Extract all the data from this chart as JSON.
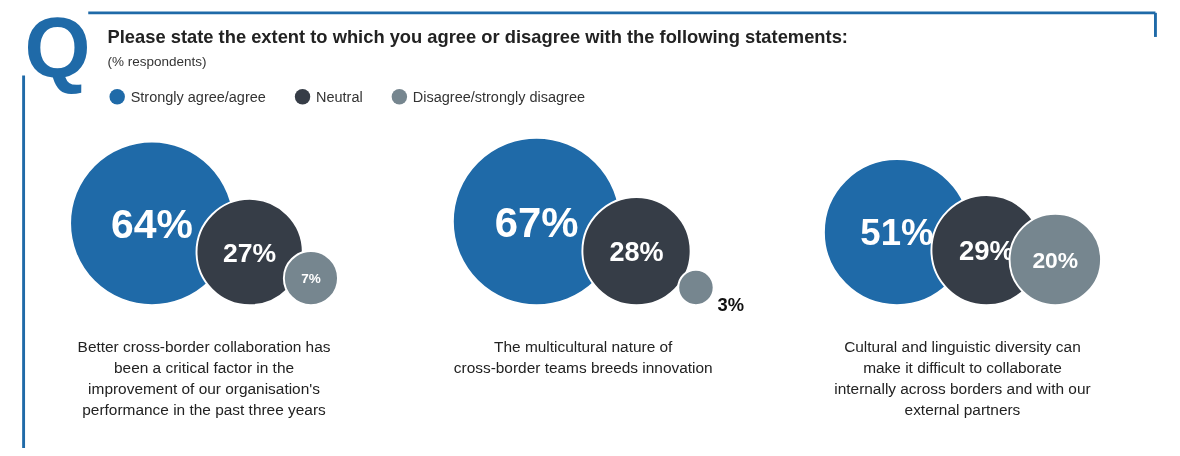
{
  "chart_data": {
    "type": "other",
    "title": "Please state the extent to which you agree or disagree with the following statements:",
    "subtitle": "(% respondents)",
    "annotations": [
      "Q"
    ],
    "categories": [
      "Better cross-border collaboration has been a critical factor in the improvement of our organisation's performance in the past three years",
      "The multicultural nature of cross-border teams breeds innovation",
      "Cultural and linguistic diversity can make it difficult to collaborate internally across borders and with our external partners"
    ],
    "series": [
      {
        "name": "Strongly agree/agree",
        "color": "#1f6aa8",
        "values": [
          64,
          67,
          51
        ],
        "value_labels": [
          "64%",
          "67%",
          "51%"
        ]
      },
      {
        "name": "Neutral",
        "color": "#363d47",
        "values": [
          27,
          28,
          29
        ],
        "value_labels": [
          "27%",
          "28%",
          "29%"
        ]
      },
      {
        "name": "Disagree/strongly disagree",
        "color": "#76868f",
        "values": [
          7,
          3,
          20
        ],
        "value_labels": [
          "7%",
          "3%",
          "20%"
        ]
      }
    ],
    "legend": "top left"
  }
}
